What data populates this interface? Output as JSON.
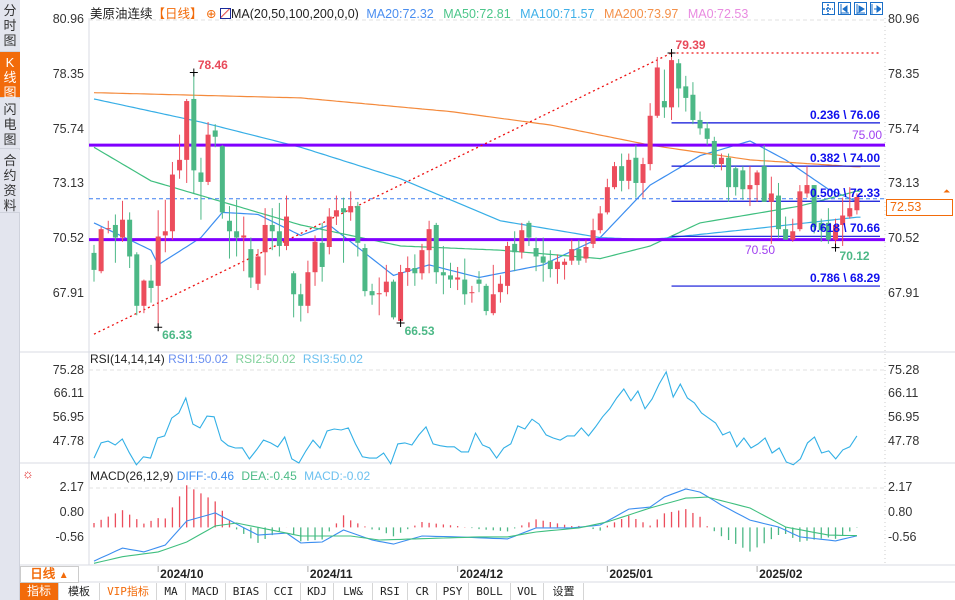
{
  "sidebar": {
    "tabs": [
      {
        "label": "分时图",
        "active": false
      },
      {
        "label": "K线图",
        "active": true
      },
      {
        "label": "闪电图",
        "active": false
      },
      {
        "label": "合约资料",
        "active": false
      }
    ]
  },
  "header": {
    "symbol": "美原油连续",
    "period": "【日线】",
    "ma_spec": "MA(20,50,100,200,0,0)",
    "ma20": "MA20:72.32",
    "ma50": "MA50:72.81",
    "ma100": "MA100:71.57",
    "ma200": "MA200:73.97",
    "ma0": "MA0:72.53"
  },
  "rsi_header": {
    "spec": "RSI(14,14,14)",
    "rsi1": "RSI1:50.02",
    "rsi2": "RSI2:50.02",
    "rsi3": "RSI3:50.02"
  },
  "macd_header": {
    "spec": "MACD(26,12,9)",
    "diff": "DIFF:-0.46",
    "dea": "DEA:-0.45",
    "macd": "MACD:-0.02"
  },
  "period_selector": {
    "label": "日线",
    "arrow": "▲"
  },
  "toolbar": [
    {
      "label": "指标",
      "active": true
    },
    {
      "label": "模板"
    },
    {
      "label": "VIP指标",
      "vip": true
    },
    {
      "label": "MA"
    },
    {
      "label": "MACD"
    },
    {
      "label": "BIAS"
    },
    {
      "label": "CCI"
    },
    {
      "label": "KDJ"
    },
    {
      "label": "LW&"
    },
    {
      "label": "RSI"
    },
    {
      "label": "CR"
    },
    {
      "label": "PSY"
    },
    {
      "label": "BOLL"
    },
    {
      "label": "VOL"
    },
    {
      "label": "设置"
    }
  ],
  "top_icons": [
    "crosshair-icon",
    "zoom-in-icon",
    "zoom-out-icon",
    "move-right-icon"
  ],
  "colors": {
    "up": "#ec4d5c",
    "down": "#4cb886",
    "ma20": "#3c8ef0",
    "ma50": "#3fbf7f",
    "ma100": "#37aee6",
    "ma200": "#f48a3c",
    "ma0": "#e98be0",
    "accent": "#f26b0a",
    "purple": "#8000ff",
    "fib": "#0a10d8"
  },
  "chart_data": {
    "type": "candlestick",
    "title": "美原油连续 日线",
    "price_ticks": [
      80.96,
      78.35,
      75.74,
      73.13,
      70.52,
      67.91
    ],
    "price_range": [
      67.91,
      80.96
    ],
    "last_price": "72.53",
    "x_labels": [
      {
        "label": "2024/10",
        "index": 9
      },
      {
        "label": "2024/11",
        "index": 30
      },
      {
        "label": "2024/12",
        "index": 51
      },
      {
        "label": "2025/01",
        "index": 72
      },
      {
        "label": "2025/02",
        "index": 93
      }
    ],
    "ohlc": [
      [
        69.87,
        70.25,
        68.5,
        69.06
      ],
      [
        69.0,
        71.1,
        68.9,
        71.0
      ],
      [
        71.0,
        71.4,
        70.8,
        71.05
      ],
      [
        71.2,
        71.7,
        69.4,
        70.6
      ],
      [
        70.6,
        72.35,
        70.4,
        71.45
      ],
      [
        71.45,
        71.8,
        69.15,
        69.7
      ],
      [
        69.8,
        69.9,
        66.9,
        67.35
      ],
      [
        67.35,
        68.6,
        67.0,
        68.55
      ],
      [
        68.55,
        69.3,
        67.5,
        68.2
      ],
      [
        68.3,
        71.9,
        66.33,
        70.65
      ],
      [
        70.7,
        72.4,
        69.9,
        70.9
      ],
      [
        70.9,
        74.2,
        70.5,
        73.6
      ],
      [
        73.8,
        75.5,
        73.4,
        74.3
      ],
      [
        74.3,
        77.2,
        73.2,
        77.1
      ],
      [
        77.2,
        78.46,
        72.7,
        73.8
      ],
      [
        73.7,
        74.4,
        71.45,
        73.25
      ],
      [
        73.25,
        76.1,
        73.1,
        75.5
      ],
      [
        75.7,
        76.0,
        74.9,
        75.4
      ],
      [
        74.95,
        75.0,
        71.5,
        71.8
      ],
      [
        71.4,
        72.1,
        69.6,
        70.9
      ],
      [
        70.9,
        72.4,
        69.7,
        70.6
      ],
      [
        70.6,
        71.6,
        69.0,
        70.7
      ],
      [
        70.05,
        70.6,
        68.2,
        68.7
      ],
      [
        68.4,
        70.05,
        68.1,
        69.7
      ],
      [
        69.9,
        72.0,
        68.8,
        71.2
      ],
      [
        71.2,
        72.0,
        70.0,
        70.9
      ],
      [
        70.9,
        72.25,
        69.7,
        70.2
      ],
      [
        70.2,
        72.6,
        70.0,
        71.6
      ],
      [
        68.9,
        69.0,
        66.8,
        67.9
      ],
      [
        67.9,
        68.4,
        66.6,
        67.35
      ],
      [
        67.35,
        69.5,
        67.0,
        68.95
      ],
      [
        68.95,
        70.7,
        68.3,
        70.4
      ],
      [
        70.35,
        71.3,
        68.5,
        69.2
      ],
      [
        70.15,
        72.0,
        69.8,
        71.6
      ],
      [
        71.6,
        72.6,
        71.2,
        71.9
      ],
      [
        72.0,
        72.5,
        69.4,
        71.8
      ],
      [
        71.8,
        72.8,
        71.4,
        72.1
      ],
      [
        72.1,
        72.3,
        69.7,
        70.35
      ],
      [
        70.1,
        70.3,
        67.8,
        68.05
      ],
      [
        68.05,
        68.4,
        67.4,
        67.85
      ],
      [
        67.9,
        68.7,
        66.9,
        67.95
      ],
      [
        68.0,
        69.3,
        67.8,
        68.5
      ],
      [
        68.5,
        68.6,
        66.7,
        66.8
      ],
      [
        66.63,
        69.3,
        66.53,
        68.96
      ],
      [
        68.96,
        69.7,
        68.3,
        69.15
      ],
      [
        69.15,
        69.8,
        68.3,
        68.9
      ],
      [
        68.9,
        70.3,
        68.6,
        70.0
      ],
      [
        70.0,
        71.4,
        68.9,
        71.0
      ],
      [
        71.2,
        71.3,
        68.4,
        68.95
      ],
      [
        68.95,
        70.2,
        67.9,
        68.8
      ],
      [
        68.8,
        69.4,
        68.2,
        68.6
      ],
      [
        68.6,
        69.2,
        68.1,
        68.7
      ],
      [
        68.6,
        69.6,
        67.4,
        67.9
      ],
      [
        67.95,
        68.3,
        67.5,
        68.0
      ],
      [
        68.6,
        69.0,
        68.0,
        68.4
      ],
      [
        68.3,
        68.4,
        66.9,
        67.1
      ],
      [
        67.0,
        69.3,
        66.9,
        67.9
      ],
      [
        68.0,
        68.8,
        67.5,
        68.4
      ],
      [
        68.3,
        70.4,
        67.9,
        70.2
      ],
      [
        70.3,
        70.9,
        69.0,
        69.9
      ],
      [
        69.9,
        71.3,
        69.6,
        70.95
      ],
      [
        71.3,
        71.4,
        70.2,
        70.6
      ],
      [
        70.1,
        70.6,
        69.0,
        69.7
      ],
      [
        69.7,
        70.6,
        68.5,
        69.4
      ],
      [
        69.5,
        70.0,
        68.7,
        69.1
      ],
      [
        69.1,
        69.8,
        68.4,
        69.45
      ],
      [
        69.3,
        69.6,
        68.6,
        69.45
      ],
      [
        69.5,
        70.5,
        69.3,
        70.05
      ],
      [
        70.05,
        70.5,
        69.3,
        69.5
      ],
      [
        69.6,
        70.5,
        69.4,
        70.15
      ],
      [
        70.3,
        71.5,
        70.1,
        70.95
      ],
      [
        70.95,
        72.1,
        70.8,
        71.75
      ],
      [
        71.8,
        73.4,
        71.7,
        73.0
      ],
      [
        73.0,
        74.2,
        72.9,
        74.0
      ],
      [
        74.0,
        74.6,
        72.8,
        73.3
      ],
      [
        73.3,
        74.6,
        72.9,
        74.3
      ],
      [
        74.4,
        75.0,
        72.5,
        73.2
      ],
      [
        73.2,
        74.4,
        72.5,
        74.1
      ],
      [
        74.1,
        77.0,
        73.8,
        76.4
      ],
      [
        76.4,
        79.2,
        76.3,
        78.7
      ],
      [
        77.1,
        78.6,
        76.3,
        76.8
      ],
      [
        76.8,
        79.39,
        76.2,
        79.05
      ],
      [
        78.9,
        79.1,
        76.8,
        77.7
      ],
      [
        77.8,
        78.3,
        76.6,
        77.25
      ],
      [
        77.4,
        78.0,
        76.0,
        76.2
      ],
      [
        76.2,
        76.6,
        75.5,
        75.8
      ],
      [
        75.8,
        76.1,
        75.0,
        75.3
      ],
      [
        75.2,
        75.4,
        73.9,
        74.1
      ],
      [
        74.1,
        74.6,
        73.8,
        74.4
      ],
      [
        74.4,
        74.6,
        72.3,
        73.0
      ],
      [
        73.9,
        74.0,
        72.6,
        73.0
      ],
      [
        73.8,
        74.0,
        72.4,
        72.9
      ],
      [
        72.9,
        74.0,
        72.1,
        73.1
      ],
      [
        73.1,
        73.8,
        72.3,
        73.7
      ],
      [
        74.0,
        75.0,
        72.3,
        72.3
      ],
      [
        72.3,
        73.5,
        70.3,
        72.7
      ],
      [
        72.6,
        73.2,
        70.6,
        71.0
      ],
      [
        71.0,
        71.6,
        70.5,
        70.5
      ],
      [
        70.5,
        71.5,
        70.4,
        70.9
      ],
      [
        71.0,
        73.1,
        70.9,
        72.8
      ],
      [
        72.7,
        74.0,
        72.5,
        73.1
      ],
      [
        73.1,
        73.1,
        70.8,
        71.1
      ],
      [
        71.3,
        71.5,
        70.4,
        70.95
      ],
      [
        71.3,
        72.0,
        70.3,
        70.5
      ],
      [
        70.5,
        71.5,
        70.12,
        71.2
      ],
      [
        71.2,
        72.5,
        70.2,
        71.65
      ],
      [
        71.6,
        73.0,
        71.5,
        72.0
      ],
      [
        71.9,
        72.7,
        71.7,
        72.53
      ]
    ],
    "moving_averages": [
      {
        "name": "MA20",
        "points": [
          [
            0,
            71.3
          ],
          [
            8,
            70.0
          ],
          [
            9,
            69.3
          ],
          [
            15,
            70.6
          ],
          [
            18,
            71.8
          ],
          [
            23,
            71.7
          ],
          [
            29,
            70.7
          ],
          [
            33,
            71.2
          ],
          [
            42,
            68.8
          ],
          [
            47,
            69.3
          ],
          [
            54,
            68.7
          ],
          [
            63,
            69.3
          ],
          [
            71,
            70.6
          ],
          [
            78,
            73.1
          ],
          [
            85,
            74.5
          ],
          [
            92,
            75.2
          ],
          [
            97,
            74.3
          ],
          [
            103,
            72.9
          ],
          [
            107,
            72.32
          ]
        ]
      },
      {
        "name": "MA50",
        "points": [
          [
            0,
            74.9
          ],
          [
            8,
            73.3
          ],
          [
            15,
            72.6
          ],
          [
            29,
            71.2
          ],
          [
            43,
            70.2
          ],
          [
            57,
            70.0
          ],
          [
            71,
            69.6
          ],
          [
            78,
            70.2
          ],
          [
            85,
            71.3
          ],
          [
            99,
            72.1
          ],
          [
            107,
            72.81
          ]
        ]
      },
      {
        "name": "MA100",
        "points": [
          [
            0,
            77.2
          ],
          [
            15,
            76.1
          ],
          [
            29,
            74.9
          ],
          [
            43,
            73.4
          ],
          [
            57,
            71.4
          ],
          [
            71,
            70.6
          ],
          [
            78,
            70.5
          ],
          [
            92,
            71.0
          ],
          [
            107,
            71.57
          ]
        ]
      },
      {
        "name": "MA200",
        "points": [
          [
            0,
            77.5
          ],
          [
            29,
            77.25
          ],
          [
            50,
            76.6
          ],
          [
            64,
            75.96
          ],
          [
            78,
            75.0
          ],
          [
            92,
            74.3
          ],
          [
            107,
            73.97
          ]
        ]
      }
    ],
    "annotations": [
      {
        "label": "78.46",
        "index": 14,
        "price": 78.46,
        "kind": "high"
      },
      {
        "label": "66.33",
        "index": 9,
        "price": 66.33,
        "kind": "low"
      },
      {
        "label": "66.53",
        "index": 43,
        "price": 66.53,
        "kind": "low"
      },
      {
        "label": "79.39",
        "index": 81,
        "price": 79.39,
        "kind": "high"
      },
      {
        "label": "70.12",
        "index": 104,
        "price": 70.12,
        "kind": "low"
      }
    ],
    "horizontal_lines": [
      {
        "label": "75.00",
        "price": 75.0
      },
      {
        "label": "70.50",
        "price": 70.5
      }
    ],
    "trend_line": {
      "from": [
        0,
        66.0
      ],
      "to": [
        81,
        79.39
      ]
    },
    "fibonacci": {
      "start_index": 81,
      "levels": [
        {
          "label": "0.236 \\ 76.06",
          "price": 76.06
        },
        {
          "label": "0.382 \\ 74.00",
          "price": 74.0
        },
        {
          "label": "0.500 \\ 72.33",
          "price": 72.33
        },
        {
          "label": "0.618 \\ 70.66",
          "price": 70.66
        },
        {
          "label": "0.786 \\ 68.29",
          "price": 68.29
        }
      ]
    },
    "rsi": {
      "ticks": [
        75.28,
        66.11,
        56.95,
        47.78
      ],
      "values": [
        41.4,
        47.3,
        48.0,
        46.5,
        48.8,
        43.5,
        38.8,
        41.9,
        41.4,
        49.2,
        50.0,
        56.9,
        58.9,
        64.7,
        54.6,
        53.1,
        57.7,
        57.4,
        48.4,
        46.2,
        45.3,
        45.4,
        41.1,
        44.6,
        48.4,
        47.3,
        45.7,
        49.6,
        41.1,
        39.5,
        44.2,
        48.4,
        45.3,
        51.9,
        52.7,
        52.3,
        53.1,
        47.0,
        41.9,
        41.4,
        41.4,
        43.4,
        39.2,
        46.9,
        47.3,
        46.5,
        50.4,
        53.5,
        46.9,
        46.2,
        45.8,
        45.8,
        43.8,
        43.8,
        51.1,
        46.5,
        45.3,
        41.4,
        45.3,
        46.9,
        53.9,
        52.7,
        56.5,
        54.6,
        50.4,
        49.2,
        48.4,
        50.0,
        50.0,
        53.1,
        50.0,
        53.5,
        57.4,
        60.5,
        64.7,
        68.2,
        63.6,
        67.4,
        60.5,
        64.3,
        70.1,
        74.8,
        65.1,
        70.1,
        64.7,
        62.8,
        58.9,
        56.9,
        55.0,
        50.4,
        51.6,
        45.8,
        49.2,
        45.3,
        46.9,
        49.2,
        43.4,
        45.3,
        39.9,
        38.8,
        41.1,
        47.3,
        49.6,
        43.4,
        44.2,
        41.1,
        44.6,
        45.8,
        50.02
      ]
    },
    "macd": {
      "ticks": [
        2.17,
        0.8,
        -0.56
      ],
      "diff": [
        [
          0,
          -1.84
        ],
        [
          4,
          -1.13
        ],
        [
          7,
          -1.34
        ],
        [
          10,
          -0.96
        ],
        [
          13,
          0.35
        ],
        [
          17,
          0.79
        ],
        [
          23,
          -0.42
        ],
        [
          27,
          -0.31
        ],
        [
          29,
          -0.85
        ],
        [
          32,
          -0.8
        ],
        [
          35,
          -0.14
        ],
        [
          39,
          -0.69
        ],
        [
          42,
          -0.91
        ],
        [
          46,
          -0.47
        ],
        [
          51,
          -0.52
        ],
        [
          58,
          -0.63
        ],
        [
          62,
          -0.03
        ],
        [
          67,
          -0.03
        ],
        [
          71,
          0.13
        ],
        [
          75,
          1.0
        ],
        [
          78,
          1.11
        ],
        [
          80,
          1.66
        ],
        [
          83,
          2.1
        ],
        [
          85,
          1.93
        ],
        [
          88,
          1.22
        ],
        [
          92,
          0.4
        ],
        [
          96,
          0.02
        ],
        [
          99,
          -0.52
        ],
        [
          104,
          -0.74
        ],
        [
          107,
          -0.46
        ]
      ],
      "dea": [
        [
          0,
          -1.96
        ],
        [
          4,
          -1.6
        ],
        [
          9,
          -1.34
        ],
        [
          13,
          -0.8
        ],
        [
          17,
          0.08
        ],
        [
          20,
          0.24
        ],
        [
          29,
          -0.47
        ],
        [
          36,
          -0.47
        ],
        [
          40,
          -0.69
        ],
        [
          54,
          -0.52
        ],
        [
          58,
          -0.52
        ],
        [
          62,
          -0.25
        ],
        [
          68,
          -0.03
        ],
        [
          72,
          0.3
        ],
        [
          78,
          1.06
        ],
        [
          83,
          1.6
        ],
        [
          86,
          1.66
        ],
        [
          92,
          1.06
        ],
        [
          97,
          0.02
        ],
        [
          103,
          -0.42
        ],
        [
          107,
          -0.45
        ]
      ]
    }
  }
}
